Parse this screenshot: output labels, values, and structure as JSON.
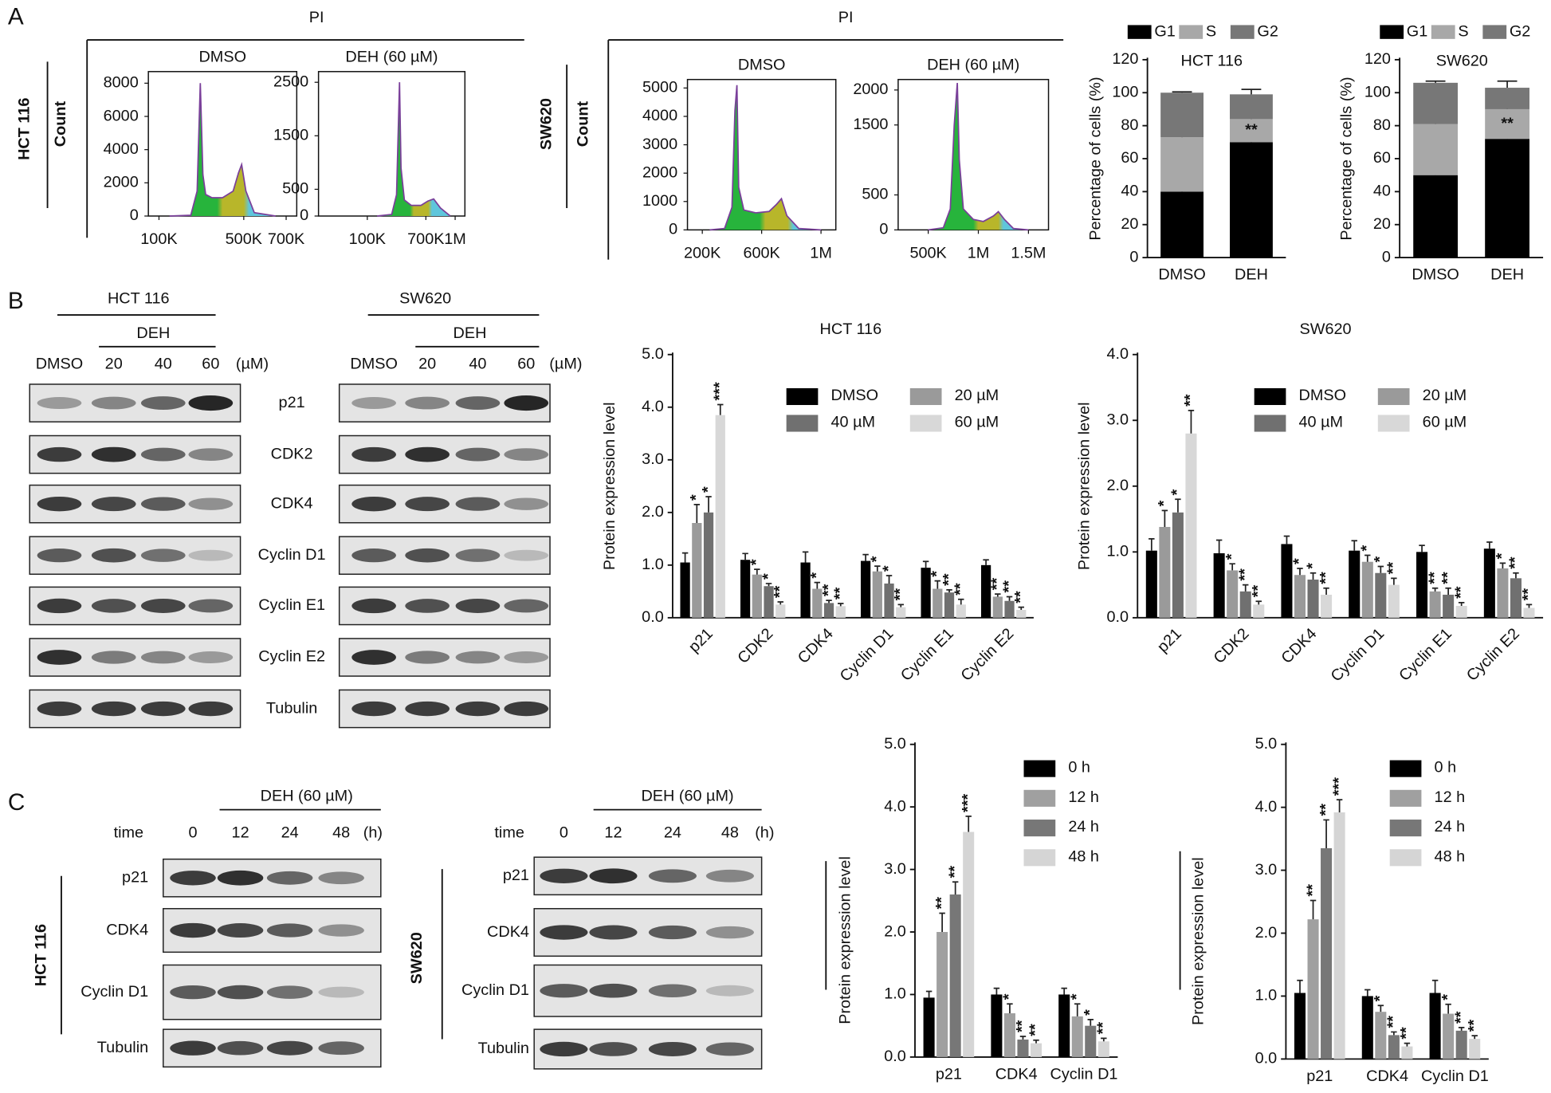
{
  "panel_labels": [
    "A",
    "B",
    "C"
  ],
  "flow_groups": [
    {
      "xlabel": "PI",
      "ylabel": "Count",
      "cell": "HCT 116"
    },
    {
      "xlabel": "PI",
      "ylabel": "Count",
      "cell": "SW620"
    }
  ],
  "blots": [
    {
      "cell": "HCT 116",
      "treatment": "DEH",
      "lanes": [
        "DMSO",
        "20",
        "40",
        "60"
      ],
      "unit": "(µM)",
      "proteins": [
        "p21",
        "CDK2",
        "CDK4",
        "Cyclin D1",
        "Cyclin E1",
        "Cyclin E2",
        "Tubulin"
      ]
    },
    {
      "cell": "SW620",
      "treatment": "DEH",
      "lanes": [
        "DMSO",
        "20",
        "40",
        "60"
      ],
      "unit": "(µM)"
    },
    {
      "treatment": "DEH (60 µM)",
      "lane_header": "time",
      "lanes": [
        "0",
        "12",
        "24",
        "48"
      ],
      "unit": "(h)",
      "proteins": [
        "p21",
        "CDK4",
        "Cyclin D1",
        "Tubulin"
      ]
    },
    {
      "treatment": "DEH (60 µM)",
      "lane_header": "time",
      "lanes": [
        "0",
        "12",
        "24",
        "48"
      ],
      "unit": "(h)",
      "proteins": [
        "p21",
        "CDK4",
        "Cyclin D1",
        "Tubulin"
      ]
    }
  ],
  "chart_data": [
    {
      "type": "flow",
      "title": "DMSO",
      "color": "#7a3f9a",
      "x": [
        150000,
        250000,
        280000,
        295000,
        307000,
        320000,
        350000,
        400000,
        450000,
        475000,
        490000,
        510000,
        550000,
        650000
      ],
      "values": [
        0,
        50,
        1500,
        8000,
        2500,
        1300,
        1100,
        1100,
        1500,
        2600,
        3100,
        1500,
        200,
        0
      ],
      "xlim": [
        50000,
        750000
      ],
      "ylim": [
        0,
        8700
      ],
      "xticks": [
        {
          "value": 100000,
          "label": "100K"
        },
        {
          "value": 500000,
          "label": "500K"
        },
        {
          "value": 700000,
          "label": "700K"
        }
      ],
      "yticks": [
        0,
        2000,
        4000,
        6000,
        8000
      ]
    },
    {
      "type": "flow",
      "title": "DEH (60 µM)",
      "color": "#7a3f9a",
      "x": [
        200000,
        350000,
        400000,
        420000,
        430000,
        445000,
        480000,
        550000,
        650000,
        720000,
        780000,
        850000,
        950000
      ],
      "values": [
        0,
        30,
        400,
        1800,
        2500,
        900,
        300,
        200,
        200,
        280,
        320,
        150,
        0
      ],
      "xlim": [
        -400000,
        1100000
      ],
      "ylim": [
        0,
        2700
      ],
      "xticks": [
        {
          "value": 100000,
          "label": "100K"
        },
        {
          "value": 700000,
          "label": "700K"
        },
        {
          "value": 1000000,
          "label": "1M"
        }
      ],
      "yticks": [
        0,
        500,
        1500,
        2500
      ]
    },
    {
      "type": "flow",
      "title": "DMSO",
      "color": "#7a3f9a",
      "x": [
        250000,
        350000,
        400000,
        420000,
        433000,
        445000,
        480000,
        560000,
        650000,
        700000,
        733000,
        770000,
        850000,
        1000000
      ],
      "values": [
        0,
        50,
        800,
        4200,
        5100,
        1500,
        700,
        600,
        650,
        900,
        1100,
        500,
        50,
        0
      ],
      "xlim": [
        100000,
        1100000
      ],
      "ylim": [
        0,
        5300
      ],
      "xticks": [
        {
          "value": 200000,
          "label": "200K"
        },
        {
          "value": 600000,
          "label": "600K"
        },
        {
          "value": 1000000,
          "label": "1M"
        }
      ],
      "yticks": [
        0,
        1000,
        2000,
        3000,
        4000,
        5000
      ]
    },
    {
      "type": "flow",
      "title": "DEH  (60 µM)",
      "color": "#7a3f9a",
      "x": [
        500000,
        650000,
        720000,
        760000,
        790000,
        810000,
        850000,
        950000,
        1050000,
        1150000,
        1200000,
        1260000,
        1350000,
        1500000
      ],
      "values": [
        0,
        30,
        300,
        1500,
        2100,
        1000,
        300,
        150,
        120,
        200,
        260,
        150,
        20,
        0
      ],
      "xlim": [
        200000,
        1700000
      ],
      "ylim": [
        0,
        2150
      ],
      "xticks": [
        {
          "value": 500000,
          "label": "500K"
        },
        {
          "value": 1000000,
          "label": "1M"
        },
        {
          "value": 1500000,
          "label": "1.5M"
        }
      ],
      "yticks": [
        0,
        500,
        1500,
        2000
      ]
    },
    {
      "type": "stacked_bar",
      "title": "HCT  116",
      "ylabel": "Percentage of cells (%)",
      "categories": [
        "DMSO",
        "DEH"
      ],
      "series": [
        {
          "name": "G1",
          "color": "#000000",
          "values": [
            40,
            70
          ],
          "errors": [
            2,
            2
          ]
        },
        {
          "name": "S",
          "color": "#a8a8a8",
          "values": [
            33,
            14
          ],
          "errors": [
            1,
            1.5
          ],
          "stars": [
            null,
            "**"
          ]
        },
        {
          "name": "G2",
          "color": "#777777",
          "values": [
            27,
            15
          ],
          "errors": [
            0.5,
            3
          ]
        }
      ],
      "ylim": [
        0,
        120
      ],
      "yticks": [
        0,
        20,
        40,
        60,
        80,
        100,
        120
      ]
    },
    {
      "type": "stacked_bar",
      "title": "SW620",
      "ylabel": "Percentage of cells (%)",
      "categories": [
        "DMSO",
        "DEH"
      ],
      "series": [
        {
          "name": "G1",
          "color": "#000000",
          "values": [
            50,
            72
          ],
          "errors": [
            2,
            2
          ]
        },
        {
          "name": "S",
          "color": "#a8a8a8",
          "values": [
            31,
            18
          ],
          "errors": [
            1,
            2
          ],
          "stars": [
            null,
            "**"
          ]
        },
        {
          "name": "G2",
          "color": "#777777",
          "values": [
            25,
            13
          ],
          "errors": [
            1,
            4
          ]
        }
      ],
      "ylim": [
        0,
        120
      ],
      "yticks": [
        0,
        20,
        40,
        60,
        80,
        100,
        120
      ]
    },
    {
      "type": "grouped_bar",
      "title": "HCT 116",
      "ylabel": "Protein expression level",
      "categories": [
        "p21",
        "CDK2",
        "CDK4",
        "Cyclin D1",
        "Cyclin E1",
        "Cyclin E2"
      ],
      "series": [
        {
          "name": "DMSO",
          "color": "#000000",
          "values": [
            1.05,
            1.1,
            1.05,
            1.08,
            0.95,
            1.0
          ],
          "errors": [
            0.18,
            0.12,
            0.2,
            0.12,
            0.12,
            0.1
          ]
        },
        {
          "name": "20 µM",
          "color": "#9a9a9a",
          "values": [
            1.8,
            0.82,
            0.55,
            0.88,
            0.55,
            0.4
          ],
          "errors": [
            0.35,
            0.1,
            0.12,
            0.1,
            0.15,
            0.05
          ],
          "stars": [
            "*",
            "*",
            "*",
            "*",
            "*",
            "**"
          ]
        },
        {
          "name": "40 µM",
          "color": "#707070",
          "values": [
            2.0,
            0.6,
            0.28,
            0.65,
            0.48,
            0.32
          ],
          "errors": [
            0.3,
            0.05,
            0.05,
            0.15,
            0.05,
            0.08
          ],
          "stars": [
            "*",
            "*",
            "**",
            "*",
            "**",
            "**"
          ]
        },
        {
          "name": "60 µM",
          "color": "#d8d8d8",
          "values": [
            3.85,
            0.25,
            0.22,
            0.2,
            0.25,
            0.15
          ],
          "errors": [
            0.2,
            0.05,
            0.05,
            0.05,
            0.1,
            0.05
          ],
          "stars": [
            "***",
            "**",
            "**",
            "**",
            "**",
            "**"
          ]
        }
      ],
      "ylim": [
        0,
        5
      ],
      "yticks": [
        {
          "value": 0,
          "label": "0.0"
        },
        {
          "value": 1,
          "label": "1.0"
        },
        {
          "value": 2,
          "label": "2.0"
        },
        {
          "value": 3,
          "label": "3.0"
        },
        {
          "value": 4,
          "label": "4.0"
        },
        {
          "value": 5,
          "label": "5.0"
        }
      ]
    },
    {
      "type": "grouped_bar",
      "title": "SW620",
      "ylabel": "Protein expression level",
      "categories": [
        "p21",
        "CDK2",
        "CDK4",
        "Cyclin  D1",
        "Cyclin E1",
        "Cyclin E2"
      ],
      "series": [
        {
          "name": "DMSO",
          "color": "#000000",
          "values": [
            1.02,
            0.98,
            1.12,
            1.02,
            1.0,
            1.05
          ],
          "errors": [
            0.18,
            0.2,
            0.12,
            0.15,
            0.1,
            0.1
          ]
        },
        {
          "name": "20 µM",
          "color": "#9a9a9a",
          "values": [
            1.38,
            0.72,
            0.65,
            0.85,
            0.4,
            0.75
          ],
          "errors": [
            0.25,
            0.1,
            0.1,
            0.1,
            0.05,
            0.08
          ],
          "stars": [
            "*",
            "*",
            "*",
            "*",
            "**",
            "*"
          ]
        },
        {
          "name": "40 µM",
          "color": "#707070",
          "values": [
            1.6,
            0.4,
            0.58,
            0.68,
            0.35,
            0.6
          ],
          "errors": [
            0.2,
            0.1,
            0.1,
            0.1,
            0.1,
            0.08
          ],
          "stars": [
            "*",
            "**",
            "*",
            "*",
            "**",
            "**"
          ]
        },
        {
          "name": "60 µM",
          "color": "#d8d8d8",
          "values": [
            2.8,
            0.2,
            0.35,
            0.5,
            0.18,
            0.15
          ],
          "errors": [
            0.35,
            0.05,
            0.1,
            0.1,
            0.05,
            0.05
          ],
          "stars": [
            "**",
            "**",
            "**",
            "**",
            "**",
            "**"
          ]
        }
      ],
      "ylim": [
        0,
        4
      ],
      "yticks": [
        {
          "value": 0,
          "label": "0.0"
        },
        {
          "value": 1,
          "label": "1.0"
        },
        {
          "value": 2,
          "label": "2.0"
        },
        {
          "value": 3,
          "label": "3.0"
        },
        {
          "value": 4,
          "label": "4.0"
        }
      ]
    },
    {
      "type": "grouped_bar",
      "cell": "HCT 116",
      "ylabel": "Protein expression level",
      "categories": [
        "p21",
        "CDK4",
        "Cyclin D1"
      ],
      "series": [
        {
          "name": "0 h",
          "color": "#000000",
          "values": [
            0.95,
            1.0,
            1.0
          ],
          "errors": [
            0.1,
            0.1,
            0.1
          ]
        },
        {
          "name": "12 h",
          "color": "#a0a0a0",
          "values": [
            2.0,
            0.7,
            0.65
          ],
          "errors": [
            0.3,
            0.15,
            0.2
          ],
          "stars": [
            "**",
            "*",
            "*"
          ]
        },
        {
          "name": "24 h",
          "color": "#777777",
          "values": [
            2.6,
            0.28,
            0.5
          ],
          "errors": [
            0.2,
            0.05,
            0.1
          ],
          "stars": [
            "**",
            "**",
            "*"
          ]
        },
        {
          "name": "48 h",
          "color": "#d5d5d5",
          "values": [
            3.6,
            0.22,
            0.25
          ],
          "errors": [
            0.25,
            0.05,
            0.05
          ],
          "stars": [
            "***",
            "**",
            "**"
          ]
        }
      ],
      "ylim": [
        0,
        5
      ],
      "yticks": [
        {
          "value": 0,
          "label": "0.0"
        },
        {
          "value": 1,
          "label": "1.0"
        },
        {
          "value": 2,
          "label": "2.0"
        },
        {
          "value": 3,
          "label": "3.0"
        },
        {
          "value": 4,
          "label": "4.0"
        },
        {
          "value": 5,
          "label": "5.0"
        }
      ]
    },
    {
      "type": "grouped_bar",
      "cell": "SW620",
      "ylabel": "Protein expression level",
      "categories": [
        "p21",
        "CDK4",
        "Cyclin D1"
      ],
      "series": [
        {
          "name": "0 h",
          "color": "#000000",
          "values": [
            1.05,
            1.0,
            1.05
          ],
          "errors": [
            0.2,
            0.1,
            0.2
          ]
        },
        {
          "name": "12 h",
          "color": "#a0a0a0",
          "values": [
            2.22,
            0.75,
            0.72
          ],
          "errors": [
            0.3,
            0.1,
            0.15
          ],
          "stars": [
            "**",
            "*",
            "*"
          ]
        },
        {
          "name": "24 h",
          "color": "#777777",
          "values": [
            3.35,
            0.38,
            0.45
          ],
          "errors": [
            0.45,
            0.05,
            0.05
          ],
          "stars": [
            "**",
            "**",
            "**"
          ]
        },
        {
          "name": "48 h",
          "color": "#d5d5d5",
          "values": [
            3.92,
            0.2,
            0.32
          ],
          "errors": [
            0.2,
            0.05,
            0.05
          ],
          "stars": [
            "***",
            "**",
            "**"
          ]
        }
      ],
      "ylim": [
        0,
        5
      ],
      "yticks": [
        {
          "value": 0,
          "label": "0.0"
        },
        {
          "value": 1,
          "label": "1.0"
        },
        {
          "value": 2,
          "label": "2.0"
        },
        {
          "value": 3,
          "label": "3.0"
        },
        {
          "value": 4,
          "label": "4.0"
        },
        {
          "value": 5,
          "label": "5.0"
        }
      ]
    }
  ]
}
